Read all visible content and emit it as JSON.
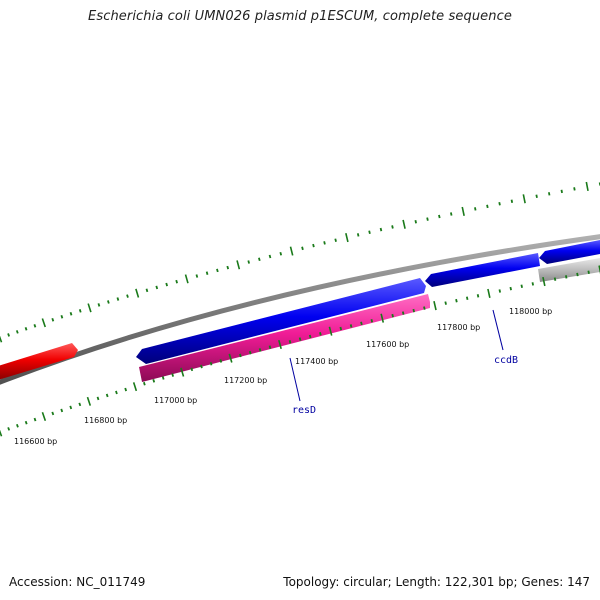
{
  "title": "Escherichia coli UMN026 plasmid p1ESCUM, complete sequence",
  "footer": {
    "accession_label": "Accession: NC_011749",
    "summary_label": "Topology: circular; Length: 122,301 bp; Genes: 147"
  },
  "colors": {
    "backbone": "#808080",
    "tick": "#1a7a1a",
    "forward_gene": "#0000ee",
    "reverse_gene_red": "#ee0000",
    "reverse_gene_pink": "#ee1493",
    "gray_gene": "#bdbdbd",
    "gene_label": "#0000a0"
  },
  "scale_labels": [
    {
      "text": "116600 bp",
      "bp": 116600
    },
    {
      "text": "116800 bp",
      "bp": 116800
    },
    {
      "text": "117000 bp",
      "bp": 117000
    },
    {
      "text": "117200 bp",
      "bp": 117200
    },
    {
      "text": "117400 bp",
      "bp": 117400
    },
    {
      "text": "117600 bp",
      "bp": 117600
    },
    {
      "text": "117800 bp",
      "bp": 117800
    },
    {
      "text": "118000 bp",
      "bp": 118000
    }
  ],
  "genes": [
    {
      "name": "resD"
    },
    {
      "name": "ccdB"
    }
  ]
}
